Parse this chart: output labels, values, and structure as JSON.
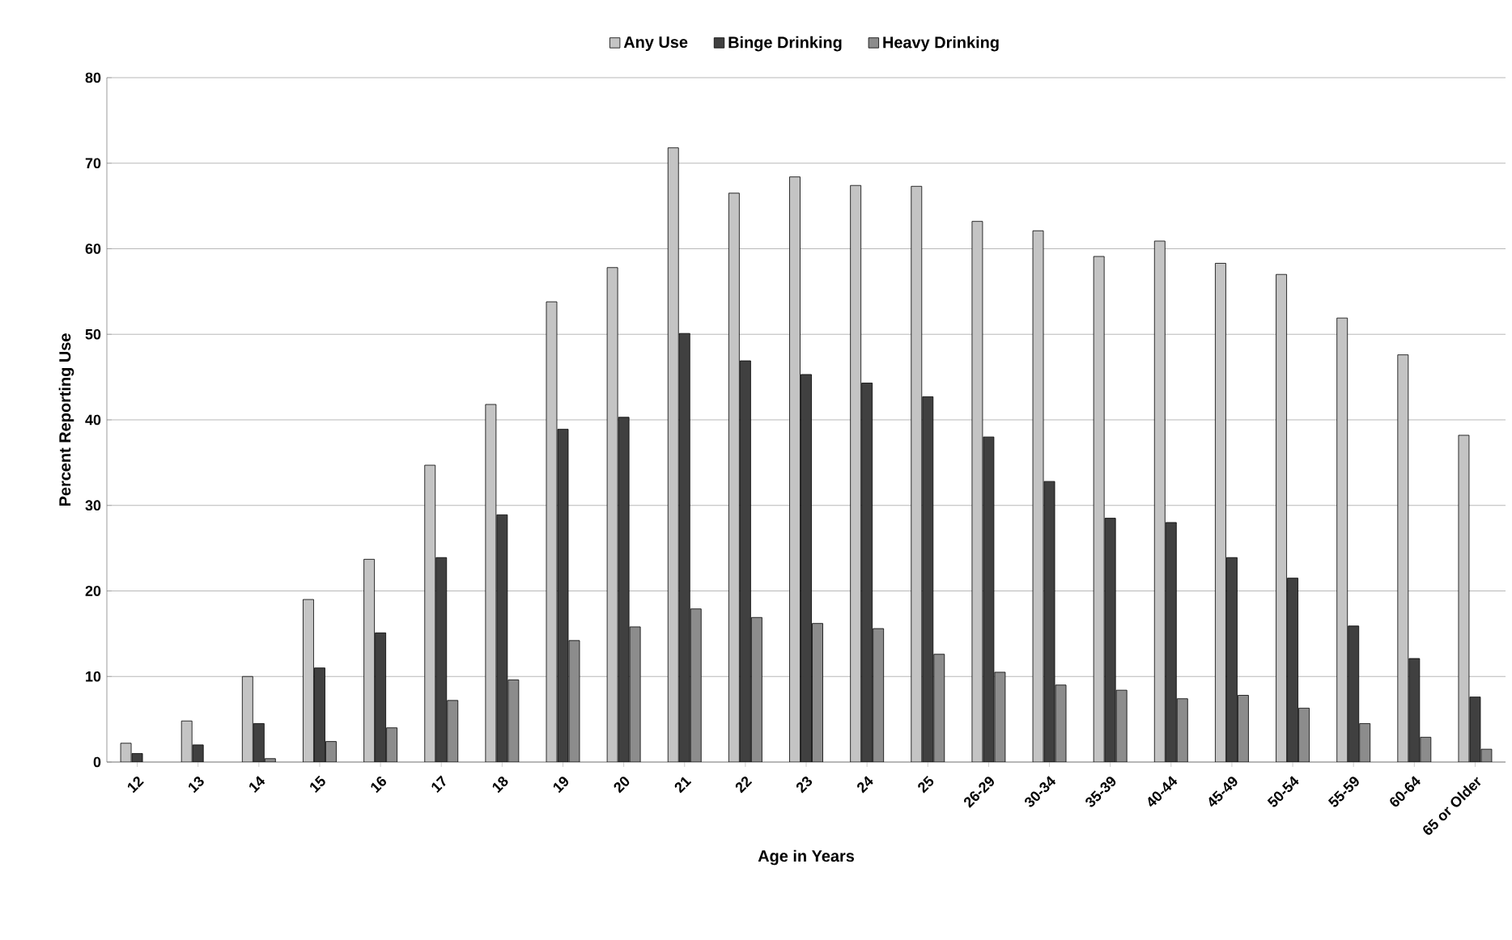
{
  "chart_data": {
    "type": "bar",
    "xlabel": "Age in Years",
    "ylabel": "Percent Reporting Use",
    "categories": [
      "12",
      "13",
      "14",
      "15",
      "16",
      "17",
      "18",
      "19",
      "20",
      "21",
      "22",
      "23",
      "24",
      "25",
      "26-29",
      "30-34",
      "35-39",
      "40-44",
      "45-49",
      "50-54",
      "55-59",
      "60-64",
      "65 or Older"
    ],
    "series": [
      {
        "name": "Any Use",
        "color": "#c4c4c4",
        "values": [
          2.2,
          4.8,
          10,
          19,
          23.7,
          34.7,
          41.8,
          53.8,
          57.8,
          71.8,
          66.5,
          68.4,
          67.4,
          67.3,
          63.2,
          62.1,
          59.1,
          60.9,
          58.3,
          57,
          51.9,
          47.6,
          38.2
        ]
      },
      {
        "name": "Binge Drinking",
        "color": "#404040",
        "values": [
          1,
          2,
          4.5,
          11,
          15.1,
          23.9,
          28.9,
          38.9,
          40.3,
          50.1,
          46.9,
          45.3,
          44.3,
          42.7,
          38,
          32.8,
          28.5,
          28,
          23.9,
          21.5,
          15.9,
          12.1,
          7.6
        ]
      },
      {
        "name": "Heavy Drinking",
        "color": "#8c8c8c",
        "values": [
          null,
          null,
          0.4,
          2.4,
          4,
          7.2,
          9.6,
          14.2,
          15.8,
          17.9,
          16.9,
          16.2,
          15.6,
          12.6,
          10.5,
          9,
          8.4,
          7.4,
          7.8,
          6.3,
          4.5,
          2.9,
          1.5
        ]
      }
    ],
    "ylim": [
      0,
      80
    ],
    "yticks": [
      0,
      10,
      20,
      30,
      40,
      50,
      60,
      70,
      80
    ],
    "grid": "y",
    "legend": "top"
  }
}
